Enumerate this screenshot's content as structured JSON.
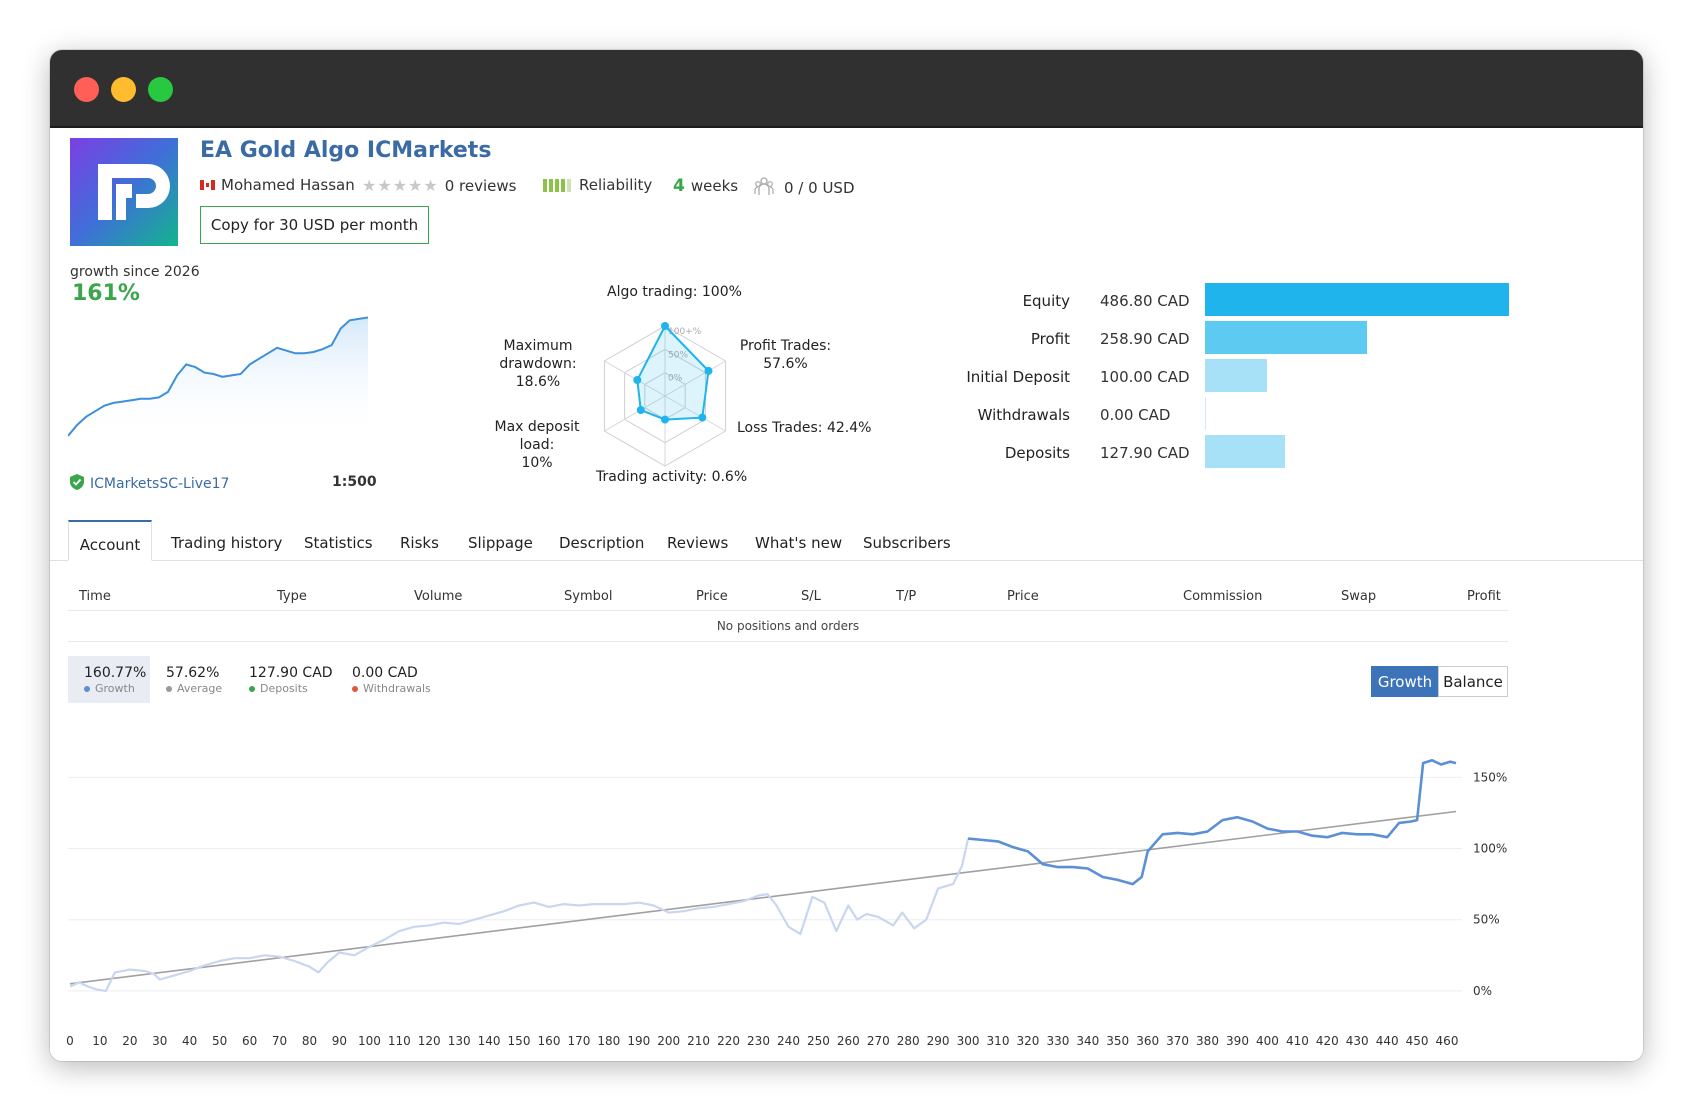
{
  "window": {
    "controls": {
      "close_color": "#ff5f57",
      "minimize_color": "#febc2e",
      "maximize_color": "#28c840"
    }
  },
  "header": {
    "logo_icon": "fp-logo",
    "title": "EA Gold Algo ICMarkets",
    "author": "Mohamed Hassan",
    "author_flag_icon": "canada-flag-icon",
    "rating_stars": 0,
    "reviews": "0 reviews",
    "reliability_label": "Reliability",
    "weeks_num": "4",
    "weeks_label": "weeks",
    "subscribers": "0 / 0 USD",
    "copy_button": "Copy for 30 USD per month"
  },
  "growth_summary": {
    "label": "growth since 2026",
    "value": "161%",
    "account": "ICMarketsSC-Live17",
    "leverage": "1:500",
    "mini_series": [
      0,
      8,
      14,
      18,
      22,
      24,
      25,
      26,
      27,
      27,
      28,
      32,
      44,
      52,
      50,
      46,
      45,
      43,
      44,
      45,
      52,
      56,
      60,
      64,
      62,
      60,
      60,
      61,
      63,
      66,
      78,
      84,
      85,
      86
    ]
  },
  "radar": {
    "labels": {
      "algo": "Algo trading: 100%",
      "profit_trades": "Profit Trades:\n57.6%",
      "loss_trades": "Loss Trades: 42.4%",
      "activity": "Trading activity: 0.6%",
      "deposit_load": "Max deposit load:\n10%",
      "drawdown": "Maximum\ndrawdown: 18.6%"
    },
    "ring_labels": [
      "100+%",
      "50%",
      "0%"
    ],
    "values": [
      100,
      57.6,
      42.4,
      0.6,
      10,
      18.6
    ]
  },
  "stats": [
    {
      "label": "Equity",
      "value": "486.80 CAD",
      "amount": 486.8,
      "color": "#1fb4ec"
    },
    {
      "label": "Profit",
      "value": "258.90 CAD",
      "amount": 258.9,
      "color": "#5ccaf1"
    },
    {
      "label": "Initial Deposit",
      "value": "100.00 CAD",
      "amount": 100.0,
      "color": "#a6e1f7"
    },
    {
      "label": "Withdrawals",
      "value": "0.00 CAD",
      "amount": 0,
      "color": "#a6e1f7"
    },
    {
      "label": "Deposits",
      "value": "127.90 CAD",
      "amount": 127.9,
      "color": "#a6e1f7"
    }
  ],
  "tabs": [
    "Account",
    "Trading history",
    "Statistics",
    "Risks",
    "Slippage",
    "Description",
    "Reviews",
    "What's new",
    "Subscribers"
  ],
  "positions_table": {
    "columns": [
      "Time",
      "Type",
      "Volume",
      "Symbol",
      "Price",
      "S/L",
      "T/P",
      "Price",
      "Commission",
      "Swap",
      "Profit"
    ],
    "empty_text": "No positions and orders"
  },
  "chart_legend": [
    {
      "value": "160.77%",
      "label": "Growth",
      "color": "#5b8fd6"
    },
    {
      "value": "57.62%",
      "label": "Average",
      "color": "#999999"
    },
    {
      "value": "127.90 CAD",
      "label": "Deposits",
      "color": "#3aa64b"
    },
    {
      "value": "0.00 CAD",
      "label": "Withdrawals",
      "color": "#e2563c"
    }
  ],
  "chart_toggle": {
    "growth": "Growth",
    "balance": "Balance"
  },
  "chart_data": {
    "type": "line",
    "x_ticks": [
      0,
      10,
      20,
      30,
      40,
      50,
      60,
      70,
      80,
      90,
      100,
      110,
      120,
      130,
      140,
      150,
      160,
      170,
      180,
      190,
      200,
      210,
      220,
      230,
      240,
      250,
      260,
      270,
      280,
      290,
      300,
      310,
      320,
      330,
      340,
      350,
      360,
      370,
      380,
      390,
      400,
      410,
      420,
      430,
      440,
      450,
      460
    ],
    "y_ticks": [
      "0%",
      "50%",
      "100%",
      "150%"
    ],
    "xlim": [
      0,
      465
    ],
    "ylim": [
      -12,
      165
    ],
    "grid": true,
    "series": [
      {
        "name": "Growth",
        "x": [
          0,
          3,
          6,
          9,
          12,
          15,
          20,
          25,
          28,
          30,
          35,
          40,
          45,
          50,
          55,
          60,
          65,
          70,
          75,
          80,
          83,
          86,
          90,
          95,
          100,
          105,
          110,
          115,
          120,
          125,
          130,
          135,
          140,
          145,
          150,
          155,
          160,
          165,
          170,
          175,
          180,
          185,
          190,
          195,
          200,
          205,
          210,
          215,
          220,
          225,
          230,
          233,
          236,
          240,
          244,
          248,
          252,
          256,
          260,
          263,
          266,
          270,
          275,
          278,
          282,
          286,
          290,
          295,
          298,
          300
        ],
        "y": [
          3,
          6,
          3,
          1,
          0,
          13,
          15,
          14,
          12,
          8,
          11,
          14,
          18,
          21,
          23,
          23,
          25,
          24,
          21,
          17,
          13,
          20,
          27,
          25,
          31,
          36,
          42,
          45,
          46,
          48,
          47,
          50,
          53,
          56,
          60,
          62,
          59,
          61,
          60,
          61,
          61,
          61,
          62,
          60,
          55,
          56,
          58,
          59,
          61,
          63,
          67,
          68,
          60,
          45,
          40,
          66,
          62,
          42,
          60,
          50,
          54,
          52,
          46,
          55,
          44,
          50,
          72,
          75,
          88,
          107
        ]
      },
      {
        "name": "Growth",
        "x": [
          300,
          305,
          310,
          315,
          320,
          325,
          330,
          335,
          340,
          345,
          350,
          355,
          358,
          360,
          365,
          370,
          375,
          380,
          385,
          390,
          395,
          400,
          405,
          410,
          415,
          420,
          425,
          430,
          435,
          440,
          444,
          448,
          450,
          452,
          455,
          458,
          461,
          463
        ],
        "y": [
          107,
          106,
          105,
          101,
          98,
          89,
          87,
          87,
          86,
          80,
          78,
          75,
          80,
          98,
          110,
          111,
          110,
          112,
          120,
          122,
          119,
          114,
          112,
          112,
          109,
          108,
          111,
          110,
          110,
          108,
          118,
          119,
          120,
          160,
          162,
          159,
          161,
          160
        ]
      },
      {
        "name": "Average",
        "x": [
          0,
          463
        ],
        "y": [
          5,
          126
        ]
      }
    ]
  }
}
